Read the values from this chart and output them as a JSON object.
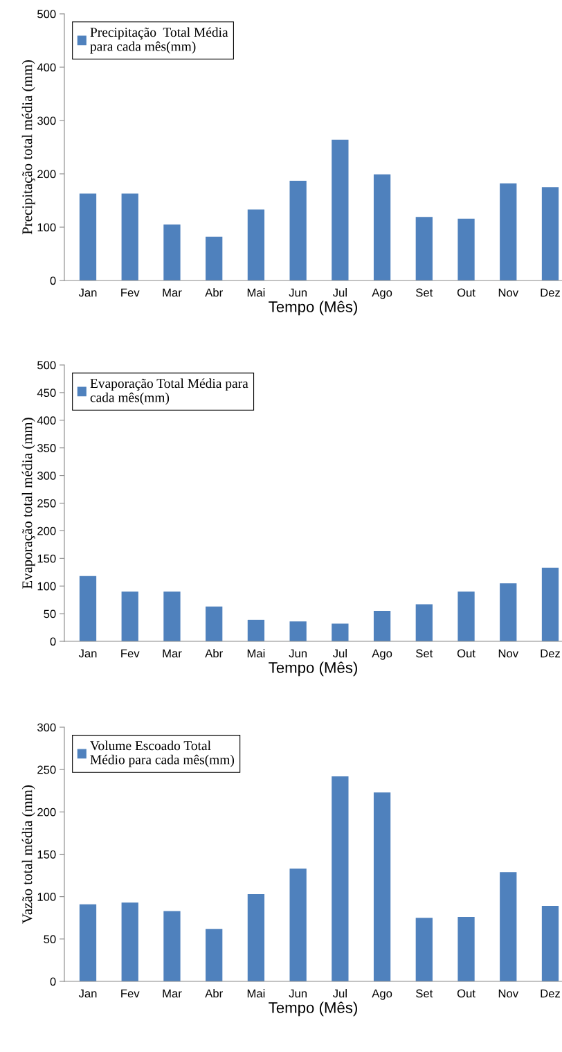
{
  "chart_data": [
    {
      "type": "bar",
      "xlabel": "Tempo (Mês)",
      "ylabel": "Precipitação total média (mm)",
      "categories": [
        "Jan",
        "Fev",
        "Mar",
        "Abr",
        "Mai",
        "Jun",
        "Jul",
        "Ago",
        "Set",
        "Out",
        "Nov",
        "Dez"
      ],
      "ylim": [
        0,
        500
      ],
      "yticks": [
        0,
        100,
        200,
        300,
        400,
        500
      ],
      "legend": "top left",
      "grid": false,
      "series": [
        {
          "name": "Precipitação  Total Média\npara cada mês(mm)",
          "color": "#4f81bd",
          "values": [
            163,
            163,
            105,
            82,
            133,
            187,
            264,
            199,
            119,
            116,
            182,
            175
          ]
        }
      ]
    },
    {
      "type": "bar",
      "xlabel": "Tempo (Mês)",
      "ylabel": "Evaporação total média (mm)",
      "categories": [
        "Jan",
        "Fev",
        "Mar",
        "Abr",
        "Mai",
        "Jun",
        "Jul",
        "Ago",
        "Set",
        "Out",
        "Nov",
        "Dez"
      ],
      "ylim": [
        0,
        500
      ],
      "yticks": [
        0,
        50,
        100,
        150,
        200,
        250,
        300,
        350,
        400,
        450,
        500
      ],
      "legend": "top left",
      "grid": false,
      "series": [
        {
          "name": "Evaporação Total Média para\ncada mês(mm)",
          "color": "#4f81bd",
          "values": [
            118,
            90,
            90,
            63,
            39,
            36,
            32,
            55,
            67,
            90,
            105,
            133
          ]
        }
      ]
    },
    {
      "type": "bar",
      "xlabel": "Tempo (Mês)",
      "ylabel": "Vazão total média (mm)",
      "categories": [
        "Jan",
        "Fev",
        "Mar",
        "Abr",
        "Mai",
        "Jun",
        "Jul",
        "Ago",
        "Set",
        "Out",
        "Nov",
        "Dez"
      ],
      "ylim": [
        0,
        300
      ],
      "yticks": [
        0,
        50,
        100,
        150,
        200,
        250,
        300
      ],
      "legend": "top left",
      "grid": false,
      "series": [
        {
          "name": "Volume Escoado Total\nMédio para cada mês(mm)",
          "color": "#4f81bd",
          "values": [
            91,
            93,
            83,
            62,
            103,
            133,
            242,
            223,
            75,
            76,
            129,
            89
          ]
        }
      ]
    }
  ]
}
